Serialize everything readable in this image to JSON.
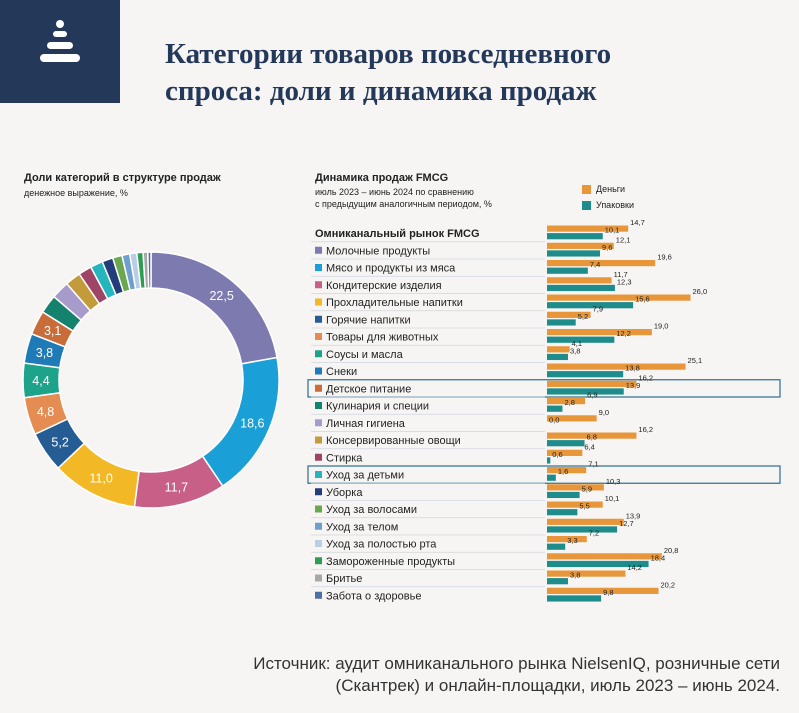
{
  "title": "Категории товаров повседневного спроса: доли и динамика продаж",
  "title_line1": "Категории товаров повседневного",
  "title_line2": "спроса: доли и динамика продаж",
  "logo_icon": "stacked-pyramid-icon",
  "donut": {
    "title": "Доли категорий в структуре продаж",
    "subtitle": "денежное выражение, %"
  },
  "bars": {
    "title": "Динамика продаж FMCG",
    "subtitle_line1": "июль 2023 – июнь 2024 по сравнению",
    "subtitle_line2": "с предыдущим аналогичным периодом, %",
    "legend": {
      "money": "Деньги",
      "units": "Упаковки"
    }
  },
  "colors": {
    "money": "#e8963a",
    "units": "#1f8c8c",
    "highlight_border": "#2a6f8f",
    "title": "#24395a"
  },
  "chart_data": [
    {
      "type": "pie",
      "title": "Доли категорий в структуре продаж",
      "subtitle": "денежное выражение, %",
      "categories": [
        "Молочные продукты",
        "Мясо и продукты из мяса",
        "Кондитерские изделия",
        "Прохладительные напитки",
        "Горячие напитки",
        "Товары для животных",
        "Соусы и масла",
        "Снеки",
        "Детское питание",
        "Кулинария и специи",
        "Личная гигиена",
        "Консервированные овощи",
        "Стирка",
        "Уход за детьми",
        "Уборка",
        "Уход за волосами",
        "Уход за телом",
        "Уход за полостью рта",
        "Замороженные продукты",
        "Бритье",
        "Забота о здоровье"
      ],
      "values": [
        22.5,
        18.6,
        11.7,
        11.0,
        5.2,
        4.8,
        4.4,
        3.8,
        3.1,
        2.4,
        2.3,
        2.0,
        1.7,
        1.6,
        1.4,
        1.2,
        1.0,
        0.9,
        0.8,
        0.6,
        0.4
      ],
      "labels": [
        "22,5",
        "18,6",
        "11,7",
        "11,0",
        "5,2",
        "4,8",
        "4,4",
        "3,8",
        "3,1",
        "",
        "",
        "",
        "",
        "",
        "",
        "",
        "",
        "",
        "",
        "",
        ""
      ],
      "colors": [
        "#7d7ab0",
        "#1aa0d6",
        "#c85f86",
        "#f3b825",
        "#255c93",
        "#e48c52",
        "#1ea38b",
        "#1f7ab8",
        "#c86c3a",
        "#14826c",
        "#a79bcc",
        "#c49b3b",
        "#9e4466",
        "#27b5bd",
        "#233d7a",
        "#6aa84f",
        "#6f9fcf",
        "#b9cde6",
        "#2e9e55",
        "#a8a8a8",
        "#4f6fa8"
      ]
    },
    {
      "type": "bar",
      "title": "Динамика продаж FMCG",
      "categories": [
        "Омниканальный рынок FMCG",
        "Молочные продукты",
        "Мясо и продукты из мяса",
        "Кондитерские изделия",
        "Прохладительные напитки",
        "Горячие напитки",
        "Товары для животных",
        "Соусы и масла",
        "Снеки",
        "Детское питание",
        "Кулинария и специи",
        "Личная гигиена",
        "Консервированные овощи",
        "Стирка",
        "Уход за детьми",
        "Уборка",
        "Уход за волосами",
        "Уход за телом",
        "Уход за полостью рта",
        "Замороженные продукты",
        "Бритье",
        "Забота о здоровье"
      ],
      "series": [
        {
          "name": "Деньги",
          "values": [
            14.7,
            12.1,
            19.6,
            11.7,
            26.0,
            7.9,
            19.0,
            4.1,
            25.1,
            16.2,
            6.9,
            9.0,
            16.2,
            6.4,
            7.1,
            10.3,
            10.1,
            13.9,
            7.2,
            20.8,
            14.2,
            20.2
          ],
          "labels": [
            "14,7",
            "12,1",
            "19,6",
            "11,7",
            "26,0",
            "7,9",
            "19,0",
            "4,1",
            "25,1",
            "16,2",
            "6,9",
            "9,0",
            "16,2",
            "6,4",
            "7,1",
            "10,3",
            "10,1",
            "13,9",
            "7,2",
            "20,8",
            "14,2",
            "20,2"
          ]
        },
        {
          "name": "Упаковки",
          "values": [
            10.1,
            9.6,
            7.4,
            12.3,
            15.6,
            5.2,
            12.2,
            3.8,
            13.8,
            13.9,
            2.8,
            0.0,
            6.8,
            0.6,
            1.6,
            5.9,
            5.5,
            12.7,
            3.3,
            18.4,
            3.8,
            9.8
          ],
          "labels": [
            "10,1",
            "9,6",
            "7,4",
            "12,3",
            "15,6",
            "5,2",
            "12,2",
            "3,8",
            "13,8",
            "13,9",
            "2,8",
            "0,0",
            "6,8",
            "0,6",
            "1,6",
            "5,9",
            "5,5",
            "12,7",
            "3,3",
            "18,4",
            "3,8",
            "9,8"
          ]
        }
      ],
      "highlighted": [
        "Детское питание",
        "Уход за детьми"
      ],
      "xlim": [
        0,
        26
      ]
    }
  ],
  "source": {
    "line1": "Источник: аудит омниканального рынка NielsenIQ, розничные сети",
    "line2": "(Скантрек) и онлайн-площадки, июль 2023 – июнь 2024."
  }
}
